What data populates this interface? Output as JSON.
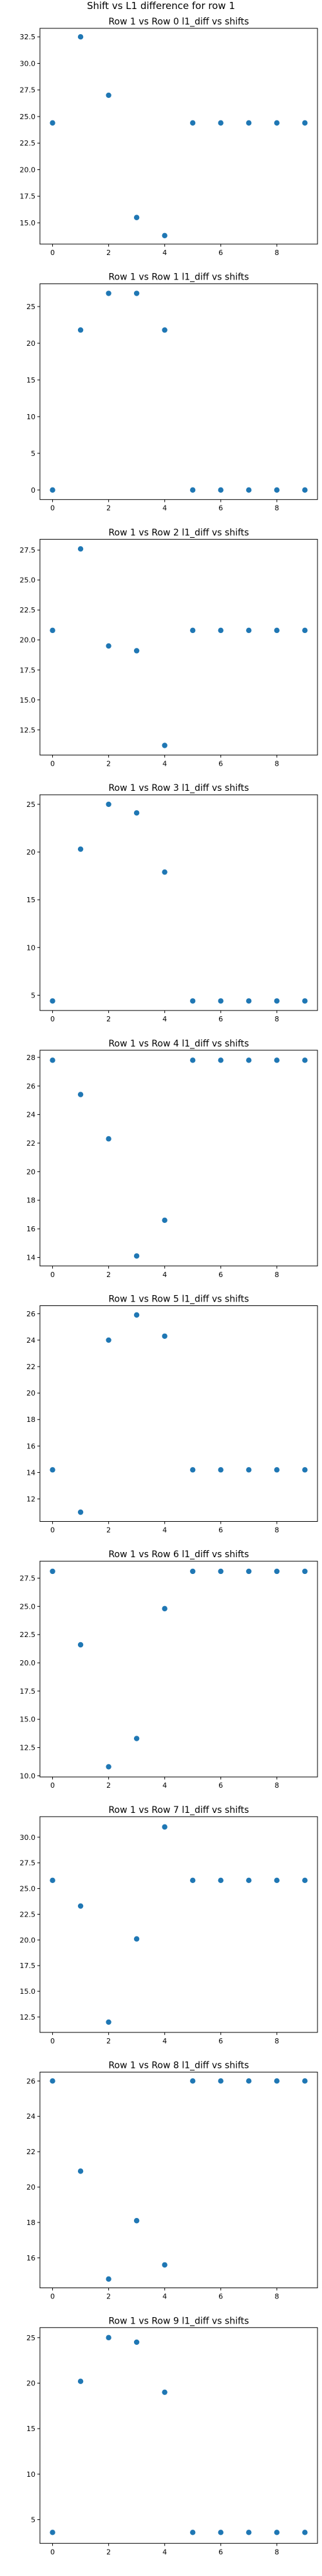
{
  "figure": {
    "suptitle": "Shift vs L1 difference for row 1"
  },
  "style": {
    "marker_color": "#1f77b4",
    "axis_color": "#000000",
    "background": "#ffffff"
  },
  "chart_data": [
    {
      "type": "scatter",
      "title": "Row 1 vs Row 0 l1_diff vs shifts",
      "x": [
        0,
        1,
        2,
        3,
        4,
        5,
        6,
        7,
        8,
        9
      ],
      "y": [
        24.4,
        32.5,
        27.0,
        15.5,
        13.8,
        24.4,
        24.4,
        24.4,
        24.4,
        24.4
      ],
      "xlim": [
        -0.45,
        9.45
      ],
      "ylim": [
        13.0,
        33.3
      ],
      "xticks": [
        0,
        2,
        4,
        6,
        8
      ],
      "yticks": [
        15.0,
        17.5,
        20.0,
        22.5,
        25.0,
        27.5,
        30.0,
        32.5
      ],
      "ytick_labels": [
        "15.0",
        "17.5",
        "20.0",
        "22.5",
        "25.0",
        "27.5",
        "30.0",
        "32.5"
      ],
      "grid": false,
      "legend": false
    },
    {
      "type": "scatter",
      "title": "Row 1 vs Row 1 l1_diff vs shifts",
      "x": [
        0,
        1,
        2,
        3,
        4,
        5,
        6,
        7,
        8,
        9
      ],
      "y": [
        0,
        21.8,
        26.8,
        26.8,
        21.8,
        0,
        0,
        0,
        0,
        0
      ],
      "xlim": [
        -0.45,
        9.45
      ],
      "ylim": [
        -1.3,
        28.1
      ],
      "xticks": [
        0,
        2,
        4,
        6,
        8
      ],
      "yticks": [
        0,
        5,
        10,
        15,
        20,
        25
      ],
      "ytick_labels": [
        "0",
        "5",
        "10",
        "15",
        "20",
        "25"
      ],
      "grid": false,
      "legend": false
    },
    {
      "type": "scatter",
      "title": "Row 1 vs Row 2 l1_diff vs shifts",
      "x": [
        0,
        1,
        2,
        3,
        4,
        5,
        6,
        7,
        8,
        9
      ],
      "y": [
        20.8,
        27.6,
        19.5,
        19.1,
        11.2,
        20.8,
        20.8,
        20.8,
        20.8,
        20.8
      ],
      "xlim": [
        -0.45,
        9.45
      ],
      "ylim": [
        10.4,
        28.4
      ],
      "xticks": [
        0,
        2,
        4,
        6,
        8
      ],
      "yticks": [
        12.5,
        15.0,
        17.5,
        20.0,
        22.5,
        25.0,
        27.5
      ],
      "ytick_labels": [
        "12.5",
        "15.0",
        "17.5",
        "20.0",
        "22.5",
        "25.0",
        "27.5"
      ],
      "grid": false,
      "legend": false
    },
    {
      "type": "scatter",
      "title": "Row 1 vs Row 3 l1_diff vs shifts",
      "x": [
        0,
        1,
        2,
        3,
        4,
        5,
        6,
        7,
        8,
        9
      ],
      "y": [
        4.4,
        20.3,
        25.0,
        24.1,
        17.9,
        4.4,
        4.4,
        4.4,
        4.4,
        4.4
      ],
      "xlim": [
        -0.45,
        9.45
      ],
      "ylim": [
        3.4,
        26.0
      ],
      "xticks": [
        0,
        2,
        4,
        6,
        8
      ],
      "yticks": [
        5,
        10,
        15,
        20,
        25
      ],
      "ytick_labels": [
        "5",
        "10",
        "15",
        "20",
        "25"
      ],
      "grid": false,
      "legend": false
    },
    {
      "type": "scatter",
      "title": "Row 1 vs Row 4 l1_diff vs shifts",
      "x": [
        0,
        1,
        2,
        3,
        4,
        5,
        6,
        7,
        8,
        9
      ],
      "y": [
        27.8,
        25.4,
        22.3,
        14.1,
        16.6,
        27.8,
        27.8,
        27.8,
        27.8,
        27.8
      ],
      "xlim": [
        -0.45,
        9.45
      ],
      "ylim": [
        13.4,
        28.5
      ],
      "xticks": [
        0,
        2,
        4,
        6,
        8
      ],
      "yticks": [
        14,
        16,
        18,
        20,
        22,
        24,
        26,
        28
      ],
      "ytick_labels": [
        "14",
        "16",
        "18",
        "20",
        "22",
        "24",
        "26",
        "28"
      ],
      "grid": false,
      "legend": false
    },
    {
      "type": "scatter",
      "title": "Row 1 vs Row 5 l1_diff vs shifts",
      "x": [
        0,
        1,
        2,
        3,
        4,
        5,
        6,
        7,
        8,
        9
      ],
      "y": [
        14.2,
        11.0,
        24.0,
        25.9,
        24.3,
        14.2,
        14.2,
        14.2,
        14.2,
        14.2
      ],
      "xlim": [
        -0.45,
        9.45
      ],
      "ylim": [
        10.3,
        26.6
      ],
      "xticks": [
        0,
        2,
        4,
        6,
        8
      ],
      "yticks": [
        12,
        14,
        16,
        18,
        20,
        22,
        24,
        26
      ],
      "ytick_labels": [
        "12",
        "14",
        "16",
        "18",
        "20",
        "22",
        "24",
        "26"
      ],
      "grid": false,
      "legend": false
    },
    {
      "type": "scatter",
      "title": "Row 1 vs Row 6 l1_diff vs shifts",
      "x": [
        0,
        1,
        2,
        3,
        4,
        5,
        6,
        7,
        8,
        9
      ],
      "y": [
        28.1,
        21.6,
        10.8,
        13.3,
        24.8,
        28.1,
        28.1,
        28.1,
        28.1,
        28.1
      ],
      "xlim": [
        -0.45,
        9.45
      ],
      "ylim": [
        9.9,
        29.0
      ],
      "xticks": [
        0,
        2,
        4,
        6,
        8
      ],
      "yticks": [
        10.0,
        12.5,
        15.0,
        17.5,
        20.0,
        22.5,
        25.0,
        27.5
      ],
      "ytick_labels": [
        "10.0",
        "12.5",
        "15.0",
        "17.5",
        "20.0",
        "22.5",
        "25.0",
        "27.5"
      ],
      "grid": false,
      "legend": false
    },
    {
      "type": "scatter",
      "title": "Row 1 vs Row 7 l1_diff vs shifts",
      "x": [
        0,
        1,
        2,
        3,
        4,
        5,
        6,
        7,
        8,
        9
      ],
      "y": [
        25.8,
        23.3,
        12.0,
        20.1,
        31.0,
        25.8,
        25.8,
        25.8,
        25.8,
        25.8
      ],
      "xlim": [
        -0.45,
        9.45
      ],
      "ylim": [
        11.0,
        32.0
      ],
      "xticks": [
        0,
        2,
        4,
        6,
        8
      ],
      "yticks": [
        12.5,
        15.0,
        17.5,
        20.0,
        22.5,
        25.0,
        27.5,
        30.0
      ],
      "ytick_labels": [
        "12.5",
        "15.0",
        "17.5",
        "20.0",
        "22.5",
        "25.0",
        "27.5",
        "30.0"
      ],
      "grid": false,
      "legend": false
    },
    {
      "type": "scatter",
      "title": "Row 1 vs Row 8 l1_diff vs shifts",
      "x": [
        0,
        1,
        2,
        3,
        4,
        5,
        6,
        7,
        8,
        9
      ],
      "y": [
        26.0,
        20.9,
        14.8,
        18.1,
        15.6,
        26.0,
        26.0,
        26.0,
        26.0,
        26.0
      ],
      "xlim": [
        -0.45,
        9.45
      ],
      "ylim": [
        14.3,
        26.5
      ],
      "xticks": [
        0,
        2,
        4,
        6,
        8
      ],
      "yticks": [
        16,
        18,
        20,
        22,
        24,
        26
      ],
      "ytick_labels": [
        "16",
        "18",
        "20",
        "22",
        "24",
        "26"
      ],
      "grid": false,
      "legend": false
    },
    {
      "type": "scatter",
      "title": "Row 1 vs Row 9 l1_diff vs shifts",
      "x": [
        0,
        1,
        2,
        3,
        4,
        5,
        6,
        7,
        8,
        9
      ],
      "y": [
        3.6,
        20.2,
        25.0,
        24.5,
        19.0,
        3.6,
        3.6,
        3.6,
        3.6,
        3.6
      ],
      "xlim": [
        -0.45,
        9.45
      ],
      "ylim": [
        2.4,
        26.1
      ],
      "xticks": [
        0,
        2,
        4,
        6,
        8
      ],
      "yticks": [
        5,
        10,
        15,
        20,
        25
      ],
      "ytick_labels": [
        "5",
        "10",
        "15",
        "20",
        "25"
      ],
      "grid": false,
      "legend": false
    }
  ]
}
